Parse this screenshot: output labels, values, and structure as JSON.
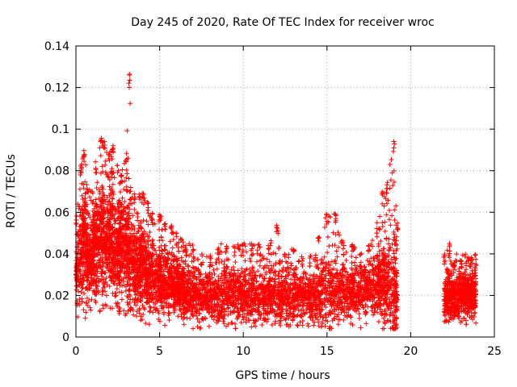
{
  "chart_data": {
    "type": "scatter",
    "title": "Day 245 of 2020, Rate Of TEC Index for receiver wroc",
    "xlabel": "GPS time / hours",
    "ylabel": "ROTI / TECUs",
    "xlim": [
      0,
      25
    ],
    "ylim": [
      0,
      0.14
    ],
    "xticks": [
      0,
      5,
      10,
      15,
      20,
      25
    ],
    "yticks": [
      0,
      0.02,
      0.04,
      0.06,
      0.08,
      0.1,
      0.12,
      0.14
    ],
    "xtick_labels": [
      "0",
      "5",
      "10",
      "15",
      "20",
      "25"
    ],
    "ytick_labels": [
      "0",
      "0.02",
      "0.04",
      "0.06",
      "0.08",
      "0.1",
      "0.12",
      "0.14"
    ],
    "grid": true,
    "marker": "plus",
    "color": "#ff0000",
    "series": [
      {
        "x": [
          0.0,
          0.3,
          0.5,
          0.7,
          1.0,
          1.2,
          1.5,
          1.7,
          2.0,
          2.2,
          2.5,
          2.7,
          3.0,
          3.2,
          3.5,
          3.8,
          4.0,
          4.3,
          4.6,
          5.0,
          5.3,
          5.7,
          6.0,
          6.3,
          6.6,
          7.0,
          7.5,
          8.0,
          8.5,
          9.0,
          9.5,
          10.0,
          10.5,
          11.0,
          11.5,
          12.0,
          12.5,
          13.0,
          13.5,
          14.0,
          14.5,
          15.0,
          15.5,
          16.0,
          16.5,
          17.0,
          17.5,
          18.0,
          18.3,
          18.6,
          19.0,
          19.2,
          22.0,
          22.3,
          22.6,
          23.0,
          23.3,
          23.6,
          23.9
        ],
        "y": [
          0.03,
          0.045,
          0.05,
          0.04,
          0.04,
          0.045,
          0.05,
          0.045,
          0.05,
          0.045,
          0.04,
          0.045,
          0.045,
          0.04,
          0.035,
          0.035,
          0.035,
          0.03,
          0.03,
          0.028,
          0.027,
          0.025,
          0.025,
          0.022,
          0.022,
          0.022,
          0.02,
          0.02,
          0.02,
          0.02,
          0.02,
          0.02,
          0.02,
          0.02,
          0.02,
          0.02,
          0.019,
          0.02,
          0.02,
          0.02,
          0.021,
          0.022,
          0.022,
          0.022,
          0.022,
          0.023,
          0.023,
          0.025,
          0.025,
          0.025,
          0.025,
          0.02,
          0.018,
          0.02,
          0.02,
          0.02,
          0.02,
          0.02,
          0.022
        ],
        "y_low": [
          0.005,
          0.008,
          0.008,
          0.01,
          0.01,
          0.012,
          0.012,
          0.012,
          0.012,
          0.012,
          0.01,
          0.01,
          0.008,
          0.008,
          0.008,
          0.007,
          0.007,
          0.006,
          0.006,
          0.005,
          0.005,
          0.005,
          0.005,
          0.005,
          0.004,
          0.004,
          0.004,
          0.004,
          0.004,
          0.004,
          0.004,
          0.004,
          0.004,
          0.004,
          0.004,
          0.004,
          0.004,
          0.004,
          0.004,
          0.004,
          0.004,
          0.004,
          0.004,
          0.004,
          0.004,
          0.004,
          0.004,
          0.004,
          0.004,
          0.004,
          0.004,
          0.004,
          0.006,
          0.006,
          0.006,
          0.006,
          0.006,
          0.006,
          0.006
        ],
        "y_high": [
          0.06,
          0.085,
          0.09,
          0.075,
          0.07,
          0.085,
          0.1,
          0.095,
          0.09,
          0.095,
          0.085,
          0.08,
          0.09,
          0.127,
          0.07,
          0.07,
          0.07,
          0.065,
          0.06,
          0.06,
          0.055,
          0.055,
          0.05,
          0.048,
          0.045,
          0.045,
          0.04,
          0.04,
          0.045,
          0.045,
          0.045,
          0.045,
          0.045,
          0.045,
          0.045,
          0.055,
          0.04,
          0.045,
          0.04,
          0.04,
          0.05,
          0.06,
          0.06,
          0.045,
          0.045,
          0.04,
          0.045,
          0.055,
          0.07,
          0.075,
          0.095,
          0.055,
          0.04,
          0.045,
          0.04,
          0.04,
          0.04,
          0.038,
          0.04
        ]
      }
    ]
  }
}
